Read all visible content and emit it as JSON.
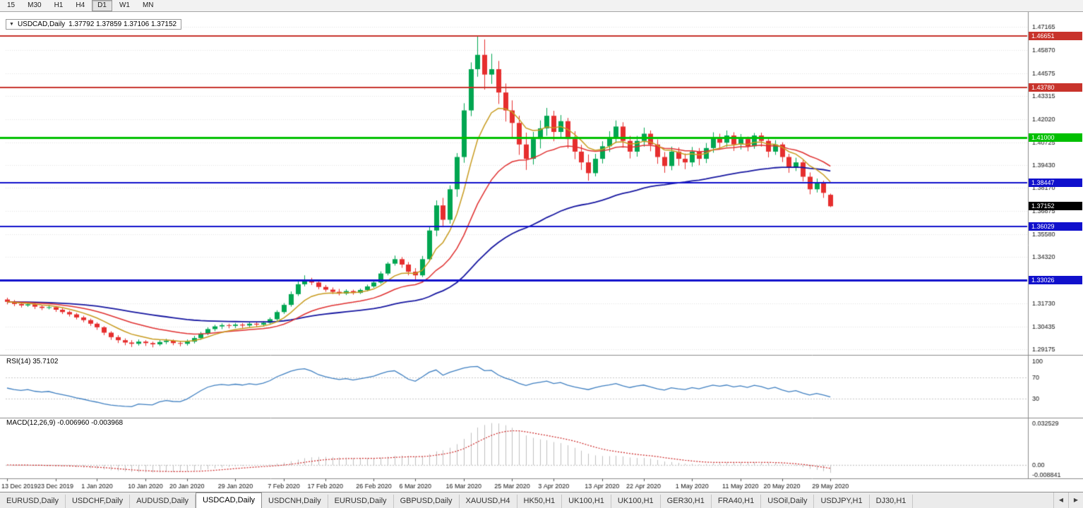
{
  "toolbar": {
    "timeframes": [
      "15",
      "M30",
      "H1",
      "H4",
      "D1",
      "W1",
      "MN"
    ],
    "active": "D1"
  },
  "chart": {
    "title": {
      "dropdown_icon": "▼",
      "symbol": "USDCAD,Daily",
      "ohlc": "1.37792 1.37859 1.37106 1.37152"
    },
    "price_axis_labels": [
      "1.47165",
      "1.45870",
      "1.44575",
      "1.43315",
      "1.42020",
      "1.40725",
      "1.39430",
      "1.38170",
      "1.36875",
      "1.35580",
      "1.34320",
      "1.33025",
      "1.31730",
      "1.30435",
      "1.29175"
    ],
    "hlines": [
      {
        "value": 1.46651,
        "label": "1.46651",
        "color": "#c8332b",
        "width": 2
      },
      {
        "value": 1.4378,
        "label": "1.43780",
        "color": "#c8332b",
        "width": 2
      },
      {
        "value": 1.41,
        "label": "1.41000",
        "color": "#00c000",
        "width": 3
      },
      {
        "value": 1.38447,
        "label": "1.38447",
        "color": "#1010cc",
        "width": 2
      },
      {
        "value": 1.36029,
        "label": "1.36029",
        "color": "#1010cc",
        "width": 2
      },
      {
        "value": 1.33026,
        "label": "1.33026",
        "color": "#1010cc",
        "width": 3
      }
    ],
    "current_price": {
      "value": 1.37152,
      "label": "1.37152",
      "color": "#000000"
    },
    "date_labels": [
      "13 Dec 2019",
      "23 Dec 2019",
      "1 Jan 2020",
      "10 Jan 2020",
      "20 Jan 2020",
      "29 Jan 2020",
      "7 Feb 2020",
      "17 Feb 2020",
      "26 Feb 2020",
      "6 Mar 2020",
      "16 Mar 2020",
      "25 Mar 2020",
      "3 Apr 2020",
      "13 Apr 2020",
      "22 Apr 2020",
      "1 May 2020",
      "11 May 2020",
      "20 May 2020",
      "29 May 2020"
    ]
  },
  "indicators": {
    "rsi": {
      "label": "RSI(14) 35.7102",
      "levels": [
        "100",
        "70",
        "30"
      ],
      "line_color": "#3e7fc1"
    },
    "macd": {
      "label": "MACD(12,26,9) -0.006960 -0.003968",
      "axis_labels": [
        "0.032529",
        "0.00",
        "-0.008841"
      ],
      "histogram_color": "#c0c0c0",
      "signal_color": "#cc2222"
    }
  },
  "chart_data": {
    "type": "candlestick",
    "symbol": "USDCAD",
    "timeframe": "Daily",
    "last_ohlc": {
      "open": 1.37792,
      "high": 1.37859,
      "low": 1.37106,
      "close": 1.37152
    },
    "y_range": [
      1.2886,
      1.4744
    ],
    "up_color": "#00a651",
    "down_color": "#e62e2e",
    "ma_fast_period": 8,
    "ma_fast_color": "#c89b1e",
    "ma_mid_period": 20,
    "ma_mid_color": "#e03030",
    "ma_slow_period": 55,
    "ma_slow_color": "#1616a0",
    "date_tick_indices": [
      0,
      7,
      13,
      20,
      26,
      33,
      40,
      46,
      53,
      59,
      66,
      73,
      79,
      86,
      92,
      99,
      106,
      112,
      119
    ],
    "candles": [
      [
        1.3195,
        1.3205,
        1.3168,
        1.3182
      ],
      [
        1.3182,
        1.3192,
        1.3158,
        1.317
      ],
      [
        1.317,
        1.3178,
        1.315,
        1.3162
      ],
      [
        1.3162,
        1.318,
        1.3154,
        1.3168
      ],
      [
        1.3168,
        1.3174,
        1.3142,
        1.3155
      ],
      [
        1.3155,
        1.3164,
        1.3136,
        1.3148
      ],
      [
        1.3148,
        1.3165,
        1.314,
        1.3152
      ],
      [
        1.3152,
        1.3158,
        1.3126,
        1.3138
      ],
      [
        1.3138,
        1.3146,
        1.3114,
        1.3125
      ],
      [
        1.3125,
        1.3133,
        1.31,
        1.3112
      ],
      [
        1.3112,
        1.312,
        1.3084,
        1.3095
      ],
      [
        1.3095,
        1.3104,
        1.3068,
        1.308
      ],
      [
        1.308,
        1.3088,
        1.3048,
        1.306
      ],
      [
        1.306,
        1.3068,
        1.3026,
        1.304
      ],
      [
        1.304,
        1.3046,
        1.2996,
        1.301
      ],
      [
        1.301,
        1.3018,
        1.297,
        1.2985
      ],
      [
        1.2985,
        1.2996,
        1.2952,
        1.2968
      ],
      [
        1.2968,
        1.2978,
        1.294,
        1.2955
      ],
      [
        1.2955,
        1.2968,
        1.293,
        1.2948
      ],
      [
        1.2948,
        1.2972,
        1.2938,
        1.296
      ],
      [
        1.296,
        1.2968,
        1.2936,
        1.2952
      ],
      [
        1.2952,
        1.296,
        1.2928,
        1.2945
      ],
      [
        1.2945,
        1.2968,
        1.2936,
        1.2958
      ],
      [
        1.2958,
        1.2976,
        1.2946,
        1.2965
      ],
      [
        1.2965,
        1.2972,
        1.294,
        1.2952
      ],
      [
        1.2952,
        1.2962,
        1.2934,
        1.2948
      ],
      [
        1.2948,
        1.2972,
        1.2938,
        1.296
      ],
      [
        1.296,
        1.2992,
        1.295,
        1.298
      ],
      [
        1.298,
        1.3014,
        1.297,
        1.3005
      ],
      [
        1.3005,
        1.304,
        1.2996,
        1.303
      ],
      [
        1.303,
        1.3054,
        1.3018,
        1.3045
      ],
      [
        1.3045,
        1.3062,
        1.303,
        1.3052
      ],
      [
        1.3052,
        1.306,
        1.3034,
        1.3048
      ],
      [
        1.3048,
        1.3064,
        1.3036,
        1.3055
      ],
      [
        1.3055,
        1.3064,
        1.3036,
        1.305
      ],
      [
        1.305,
        1.307,
        1.304,
        1.306
      ],
      [
        1.306,
        1.3068,
        1.304,
        1.3055
      ],
      [
        1.3055,
        1.3074,
        1.3044,
        1.3065
      ],
      [
        1.3065,
        1.3095,
        1.3056,
        1.3085
      ],
      [
        1.3085,
        1.3135,
        1.3076,
        1.3125
      ],
      [
        1.3125,
        1.3175,
        1.3115,
        1.3165
      ],
      [
        1.3165,
        1.324,
        1.3155,
        1.3225
      ],
      [
        1.3225,
        1.3295,
        1.3215,
        1.328
      ],
      [
        1.328,
        1.333,
        1.3268,
        1.3305
      ],
      [
        1.3305,
        1.3316,
        1.3276,
        1.329
      ],
      [
        1.329,
        1.3298,
        1.3252,
        1.3265
      ],
      [
        1.3265,
        1.3276,
        1.3238,
        1.325
      ],
      [
        1.325,
        1.3262,
        1.3226,
        1.3238
      ],
      [
        1.3238,
        1.3254,
        1.3218,
        1.3228
      ],
      [
        1.3228,
        1.3252,
        1.322,
        1.3242
      ],
      [
        1.3242,
        1.325,
        1.3222,
        1.3232
      ],
      [
        1.3232,
        1.3256,
        1.3226,
        1.3248
      ],
      [
        1.3248,
        1.3278,
        1.324,
        1.3268
      ],
      [
        1.3268,
        1.33,
        1.326,
        1.329
      ],
      [
        1.329,
        1.3352,
        1.3282,
        1.334
      ],
      [
        1.334,
        1.3404,
        1.333,
        1.3395
      ],
      [
        1.3395,
        1.344,
        1.3384,
        1.342
      ],
      [
        1.342,
        1.3432,
        1.3372,
        1.339
      ],
      [
        1.339,
        1.3404,
        1.333,
        1.335
      ],
      [
        1.335,
        1.337,
        1.3306,
        1.333
      ],
      [
        1.333,
        1.3438,
        1.332,
        1.342
      ],
      [
        1.342,
        1.3602,
        1.3408,
        1.358
      ],
      [
        1.358,
        1.3748,
        1.3548,
        1.372
      ],
      [
        1.372,
        1.3762,
        1.3598,
        1.364
      ],
      [
        1.364,
        1.3832,
        1.3618,
        1.381
      ],
      [
        1.381,
        1.4012,
        1.3768,
        1.399
      ],
      [
        1.399,
        1.429,
        1.3958,
        1.425
      ],
      [
        1.425,
        1.4518,
        1.4218,
        1.448
      ],
      [
        1.448,
        1.4669,
        1.4438,
        1.456
      ],
      [
        1.456,
        1.4646,
        1.4366,
        1.445
      ],
      [
        1.445,
        1.4566,
        1.4398,
        1.448
      ],
      [
        1.448,
        1.4526,
        1.4286,
        1.435
      ],
      [
        1.435,
        1.44,
        1.4188,
        1.425
      ],
      [
        1.425,
        1.4306,
        1.4102,
        1.418
      ],
      [
        1.418,
        1.422,
        1.4002,
        1.406
      ],
      [
        1.406,
        1.4126,
        1.3918,
        1.398
      ],
      [
        1.398,
        1.413,
        1.3948,
        1.409
      ],
      [
        1.409,
        1.4194,
        1.4038,
        1.415
      ],
      [
        1.415,
        1.4264,
        1.4108,
        1.422
      ],
      [
        1.422,
        1.4248,
        1.4078,
        1.413
      ],
      [
        1.413,
        1.4224,
        1.4092,
        1.419
      ],
      [
        1.419,
        1.4208,
        1.4038,
        1.409
      ],
      [
        1.409,
        1.4134,
        1.3978,
        1.402
      ],
      [
        1.402,
        1.4058,
        1.3918,
        1.396
      ],
      [
        1.396,
        1.4004,
        1.3858,
        1.39
      ],
      [
        1.39,
        1.4008,
        1.3882,
        1.398
      ],
      [
        1.398,
        1.4078,
        1.3954,
        1.405
      ],
      [
        1.405,
        1.4134,
        1.4018,
        1.41
      ],
      [
        1.41,
        1.4194,
        1.4068,
        1.416
      ],
      [
        1.416,
        1.4184,
        1.4042,
        1.408
      ],
      [
        1.408,
        1.4108,
        1.3982,
        1.402
      ],
      [
        1.402,
        1.4108,
        1.3992,
        1.408
      ],
      [
        1.408,
        1.4154,
        1.4048,
        1.412
      ],
      [
        1.412,
        1.4138,
        1.4022,
        1.406
      ],
      [
        1.406,
        1.4088,
        1.3952,
        1.399
      ],
      [
        1.399,
        1.4018,
        1.3902,
        1.394
      ],
      [
        1.394,
        1.4048,
        1.3916,
        1.402
      ],
      [
        1.402,
        1.4044,
        1.3942,
        1.398
      ],
      [
        1.398,
        1.401,
        1.3922,
        1.396
      ],
      [
        1.396,
        1.4046,
        1.3936,
        1.402
      ],
      [
        1.402,
        1.404,
        1.3944,
        1.398
      ],
      [
        1.398,
        1.4068,
        1.3956,
        1.404
      ],
      [
        1.404,
        1.4128,
        1.4014,
        1.41
      ],
      [
        1.41,
        1.412,
        1.4034,
        1.407
      ],
      [
        1.407,
        1.4138,
        1.4046,
        1.411
      ],
      [
        1.411,
        1.4128,
        1.4024,
        1.406
      ],
      [
        1.406,
        1.4118,
        1.4032,
        1.409
      ],
      [
        1.409,
        1.4104,
        1.4022,
        1.405
      ],
      [
        1.405,
        1.4124,
        1.4036,
        1.411
      ],
      [
        1.411,
        1.4126,
        1.4048,
        1.408
      ],
      [
        1.408,
        1.4094,
        1.3988,
        1.402
      ],
      [
        1.402,
        1.4084,
        1.4002,
        1.406
      ],
      [
        1.406,
        1.4072,
        1.3962,
        1.399
      ],
      [
        1.399,
        1.4008,
        1.3902,
        1.393
      ],
      [
        1.393,
        1.3986,
        1.3912,
        1.396
      ],
      [
        1.396,
        1.3972,
        1.3854,
        1.388
      ],
      [
        1.388,
        1.3904,
        1.3782,
        1.381
      ],
      [
        1.381,
        1.387,
        1.3792,
        1.3845
      ],
      [
        1.3845,
        1.3858,
        1.3762,
        1.379
      ],
      [
        1.37792,
        1.37859,
        1.37106,
        1.37152
      ]
    ]
  },
  "tabs": {
    "items": [
      "EURUSD,Daily",
      "USDCHF,Daily",
      "AUDUSD,Daily",
      "USDCAD,Daily",
      "USDCNH,Daily",
      "EURUSD,Daily",
      "GBPUSD,Daily",
      "XAUUSD,H4",
      "HK50,H1",
      "UK100,H1",
      "UK100,H1",
      "GER30,H1",
      "FRA40,H1",
      "USOil,Daily",
      "USDJPY,H1",
      "DJ30,H1"
    ],
    "active_index": 3,
    "scroll_left": "◀",
    "scroll_right": "▶"
  }
}
